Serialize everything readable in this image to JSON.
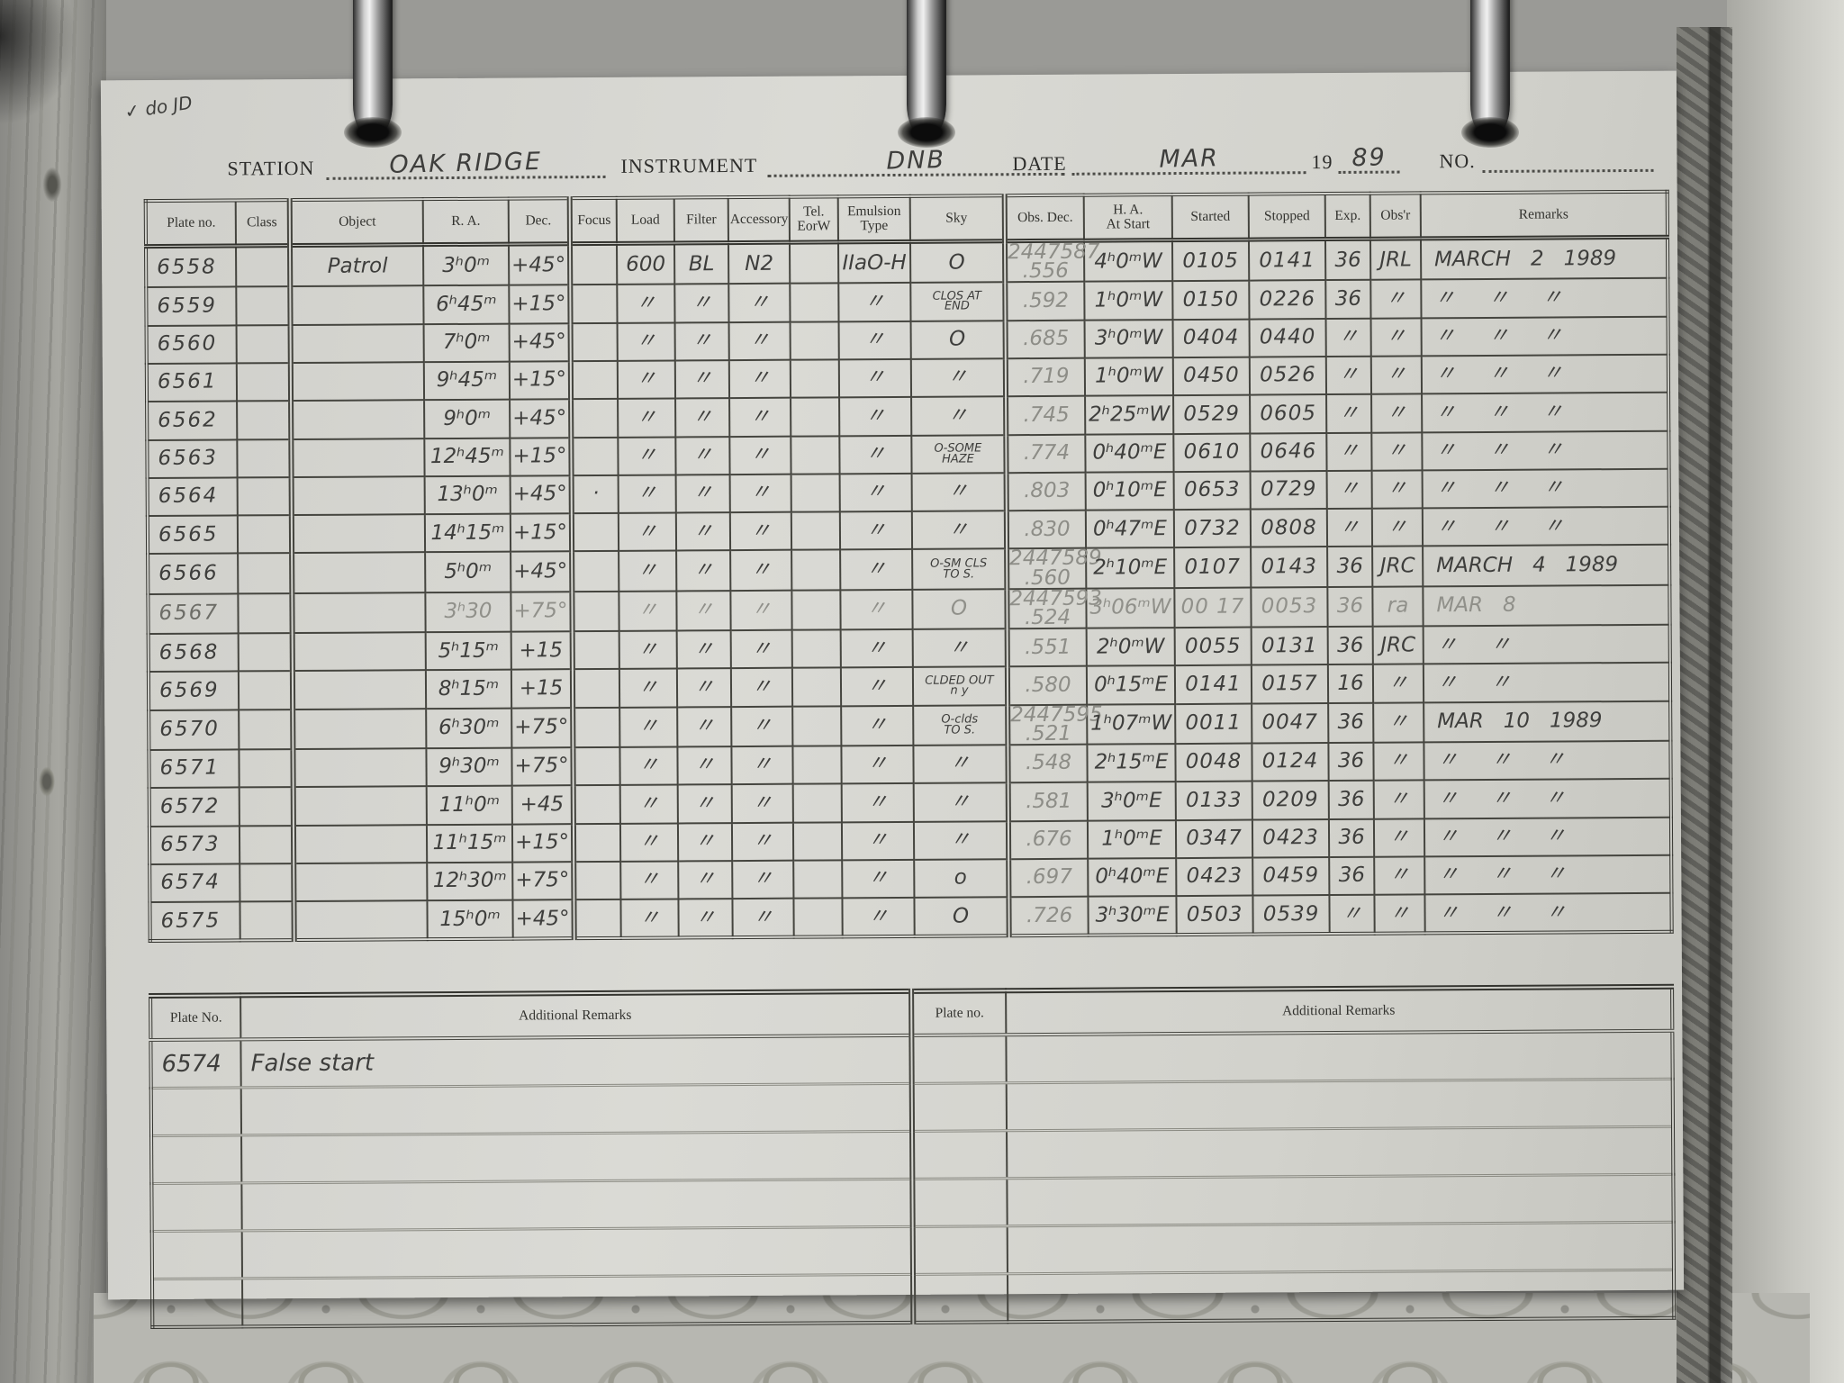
{
  "page_header": {
    "checkmark_note": "✓ do JD",
    "station_label": "STATION",
    "station_value": "OAK RIDGE",
    "instrument_label": "INSTRUMENT",
    "instrument_value": "DNB",
    "date_label": "DATE",
    "date_value": "MAR",
    "year_prefix": "19",
    "year_value": "89",
    "no_label": "NO."
  },
  "table": {
    "columns": [
      "Plate no.",
      "Class",
      "Object",
      "R. A.",
      "Dec.",
      "Focus",
      "Load",
      "Filter",
      "Accessory",
      "Tel.\nEorW",
      "Emulsion\nType",
      "Sky",
      "Obs. Dec.",
      "H. A.\nAt Start",
      "Started",
      "Stopped",
      "Exp.",
      "Obs'r",
      "Remarks"
    ],
    "rows": [
      {
        "cells": [
          "6558",
          "",
          "Patrol",
          "3ʰ0ᵐ",
          "+45°",
          "",
          "600",
          "BL",
          "N2",
          "",
          "IIaO-H",
          "O",
          "2447587\n.556",
          "4ʰ0ᵐW",
          "0105",
          "0141",
          "36",
          "JRL",
          "MARCH   2   1989"
        ]
      },
      {
        "cells": [
          "6559",
          "",
          "",
          "6ʰ45ᵐ",
          "+15°",
          "",
          "〃",
          "〃",
          "〃",
          "",
          "〃",
          "CLOS AT\nEND",
          ".592",
          "1ʰ0ᵐW",
          "0150",
          "0226",
          "36",
          "〃",
          "〃     〃     〃"
        ]
      },
      {
        "cells": [
          "6560",
          "",
          "",
          "7ʰ0ᵐ",
          "+45°",
          "",
          "〃",
          "〃",
          "〃",
          "",
          "〃",
          "O",
          ".685",
          "3ʰ0ᵐW",
          "0404",
          "0440",
          "〃",
          "〃",
          "〃     〃     〃"
        ]
      },
      {
        "cells": [
          "6561",
          "",
          "",
          "9ʰ45ᵐ",
          "+15°",
          "",
          "〃",
          "〃",
          "〃",
          "",
          "〃",
          "〃",
          ".719",
          "1ʰ0ᵐW",
          "0450",
          "0526",
          "〃",
          "〃",
          "〃     〃     〃"
        ]
      },
      {
        "cells": [
          "6562",
          "",
          "",
          "9ʰ0ᵐ",
          "+45°",
          "",
          "〃",
          "〃",
          "〃",
          "",
          "〃",
          "〃",
          ".745",
          "2ʰ25ᵐW",
          "0529",
          "0605",
          "〃",
          "〃",
          "〃     〃     〃"
        ]
      },
      {
        "cells": [
          "6563",
          "",
          "",
          "12ʰ45ᵐ",
          "+15°",
          "",
          "〃",
          "〃",
          "〃",
          "",
          "〃",
          "O-SOME\nHAZE",
          ".774",
          "0ʰ40ᵐE",
          "0610",
          "0646",
          "〃",
          "〃",
          "〃     〃     〃"
        ]
      },
      {
        "cells": [
          "6564",
          "",
          "",
          "13ʰ0ᵐ",
          "+45°",
          "·",
          "〃",
          "〃",
          "〃",
          "",
          "〃",
          "〃",
          ".803",
          "0ʰ10ᵐE",
          "0653",
          "0729",
          "〃",
          "〃",
          "〃     〃     〃"
        ]
      },
      {
        "cells": [
          "6565",
          "",
          "",
          "14ʰ15ᵐ",
          "+15°",
          "",
          "〃",
          "〃",
          "〃",
          "",
          "〃",
          "〃",
          ".830",
          "0ʰ47ᵐE",
          "0732",
          "0808",
          "〃",
          "〃",
          "〃     〃     〃"
        ]
      },
      {
        "cells": [
          "6566",
          "",
          "",
          "5ʰ0ᵐ",
          "+45°",
          "",
          "〃",
          "〃",
          "〃",
          "",
          "〃",
          "O-SM CLS\nTO S.",
          "2447589\n.560",
          "2ʰ10ᵐE",
          "0107",
          "0143",
          "36",
          "JRC",
          "MARCH   4   1989"
        ]
      },
      {
        "cells": [
          "6567",
          "",
          "",
          "3ʰ30",
          "+75°",
          "",
          "〃",
          "〃",
          "〃",
          "",
          "〃",
          "O",
          "2447593\n.524",
          "3ʰ06ᵐW",
          "00 17",
          "0053",
          "36",
          "ra",
          "MAR   8"
        ]
      },
      {
        "cells": [
          "6568",
          "",
          "",
          "5ʰ15ᵐ",
          "+15",
          "",
          "〃",
          "〃",
          "〃",
          "",
          "〃",
          "〃",
          ".551",
          "2ʰ0ᵐW",
          "0055",
          "0131",
          "36",
          "JRC",
          "〃     〃"
        ]
      },
      {
        "cells": [
          "6569",
          "",
          "",
          "8ʰ15ᵐ",
          "+15",
          "",
          "〃",
          "〃",
          "〃",
          "",
          "〃",
          "CLDED OUT\nn y",
          ".580",
          "0ʰ15ᵐE",
          "0141",
          "0157",
          "16",
          "〃",
          "〃     〃"
        ]
      },
      {
        "cells": [
          "6570",
          "",
          "",
          "6ʰ30ᵐ",
          "+75°",
          "",
          "〃",
          "〃",
          "〃",
          "",
          "〃",
          "O-clds\nTO S.",
          "2447595\n.521",
          "1ʰ07ᵐW",
          "0011",
          "0047",
          "36",
          "〃",
          "MAR   10   1989"
        ]
      },
      {
        "cells": [
          "6571",
          "",
          "",
          "9ʰ30ᵐ",
          "+75°",
          "",
          "〃",
          "〃",
          "〃",
          "",
          "〃",
          "〃",
          ".548",
          "2ʰ15ᵐE",
          "0048",
          "0124",
          "36",
          "〃",
          "〃     〃     〃"
        ]
      },
      {
        "cells": [
          "6572",
          "",
          "",
          "11ʰ0ᵐ",
          "+45",
          "",
          "〃",
          "〃",
          "〃",
          "",
          "〃",
          "〃",
          ".581",
          "3ʰ0ᵐE",
          "0133",
          "0209",
          "36",
          "〃",
          "〃     〃     〃"
        ]
      },
      {
        "cells": [
          "6573",
          "",
          "",
          "11ʰ15ᵐ",
          "+15°",
          "",
          "〃",
          "〃",
          "〃",
          "",
          "〃",
          "〃",
          ".676",
          "1ʰ0ᵐE",
          "0347",
          "0423",
          "36",
          "〃",
          "〃     〃     〃"
        ]
      },
      {
        "cells": [
          "6574",
          "",
          "",
          "12ʰ30ᵐ",
          "+75°",
          "",
          "〃",
          "〃",
          "〃",
          "",
          "〃",
          "o",
          ".697",
          "0ʰ40ᵐE",
          "0423",
          "0459",
          "36",
          "〃",
          "〃     〃     〃"
        ]
      },
      {
        "cells": [
          "6575",
          "",
          "",
          "15ʰ0ᵐ",
          "+45°",
          "",
          "〃",
          "〃",
          "〃",
          "",
          "〃",
          "O",
          ".726",
          "3ʰ30ᵐE",
          "0503",
          "0539",
          "〃",
          "〃",
          "〃     〃     〃"
        ]
      }
    ]
  },
  "footer": {
    "left_plate_label": "Plate No.",
    "left_remarks_label": "Additional Remarks",
    "right_plate_label": "Plate no.",
    "right_remarks_label": "Additional Remarks",
    "entry_plate": "6574",
    "entry_remark": "False start",
    "empty_row_count": 5
  }
}
